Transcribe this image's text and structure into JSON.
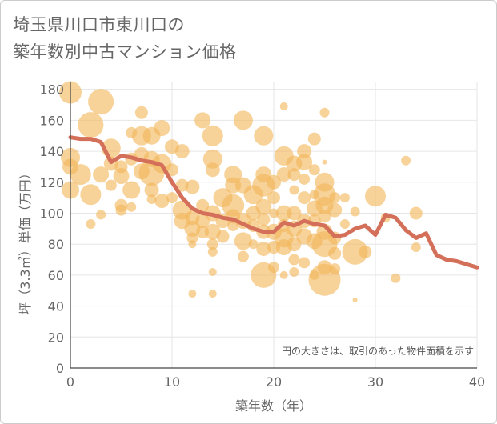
{
  "title_lines": [
    "埼玉県川口市東川口の",
    "築年数別中古マンション価格"
  ],
  "colors": {
    "bubble": "#f2b65a",
    "line": "#d4705a",
    "grid": "#e6e6e6",
    "axis": "#444444",
    "text": "#666666"
  },
  "chart_data": {
    "type": "scatter",
    "title": "埼玉県川口市東川口の築年数別中古マンション価格",
    "xlabel": "築年数（年）",
    "ylabel": "坪（3.3㎡）単価（万円）",
    "xlim": [
      0,
      40
    ],
    "ylim": [
      0,
      185
    ],
    "xticks": [
      0,
      10,
      20,
      30,
      40
    ],
    "yticks": [
      0,
      20,
      40,
      60,
      80,
      100,
      120,
      140,
      160,
      180
    ],
    "note": "円の大きさは、取引のあった物件面積を示す",
    "bubbles": [
      {
        "x": 0,
        "y": 178,
        "s": 14
      },
      {
        "x": 0,
        "y": 136,
        "s": 12
      },
      {
        "x": 0,
        "y": 130,
        "s": 10
      },
      {
        "x": 0,
        "y": 115,
        "s": 11
      },
      {
        "x": 1,
        "y": 125,
        "s": 13
      },
      {
        "x": 2,
        "y": 157,
        "s": 16
      },
      {
        "x": 2,
        "y": 112,
        "s": 13
      },
      {
        "x": 2,
        "y": 93,
        "s": 6
      },
      {
        "x": 3,
        "y": 172,
        "s": 16
      },
      {
        "x": 3,
        "y": 125,
        "s": 10
      },
      {
        "x": 3,
        "y": 99,
        "s": 6
      },
      {
        "x": 4,
        "y": 142,
        "s": 12
      },
      {
        "x": 4,
        "y": 132,
        "s": 9
      },
      {
        "x": 4,
        "y": 118,
        "s": 7
      },
      {
        "x": 5,
        "y": 130,
        "s": 8
      },
      {
        "x": 5,
        "y": 124,
        "s": 10
      },
      {
        "x": 5,
        "y": 105,
        "s": 8
      },
      {
        "x": 5,
        "y": 102,
        "s": 7
      },
      {
        "x": 6,
        "y": 152,
        "s": 7
      },
      {
        "x": 6,
        "y": 135,
        "s": 8
      },
      {
        "x": 6,
        "y": 115,
        "s": 11
      },
      {
        "x": 6,
        "y": 104,
        "s": 6
      },
      {
        "x": 7,
        "y": 165,
        "s": 8
      },
      {
        "x": 7,
        "y": 150,
        "s": 12
      },
      {
        "x": 7,
        "y": 138,
        "s": 9
      },
      {
        "x": 7,
        "y": 127,
        "s": 10
      },
      {
        "x": 8,
        "y": 150,
        "s": 11
      },
      {
        "x": 8,
        "y": 135,
        "s": 10
      },
      {
        "x": 8,
        "y": 126,
        "s": 16
      },
      {
        "x": 8,
        "y": 115,
        "s": 9
      },
      {
        "x": 8,
        "y": 109,
        "s": 6
      },
      {
        "x": 9,
        "y": 155,
        "s": 10
      },
      {
        "x": 9,
        "y": 132,
        "s": 12
      },
      {
        "x": 9,
        "y": 108,
        "s": 9
      },
      {
        "x": 10,
        "y": 143,
        "s": 9
      },
      {
        "x": 10,
        "y": 128,
        "s": 8
      },
      {
        "x": 10,
        "y": 110,
        "s": 7
      },
      {
        "x": 11,
        "y": 140,
        "s": 9
      },
      {
        "x": 11,
        "y": 118,
        "s": 8
      },
      {
        "x": 11,
        "y": 102,
        "s": 12
      },
      {
        "x": 11,
        "y": 95,
        "s": 10
      },
      {
        "x": 12,
        "y": 117,
        "s": 9
      },
      {
        "x": 12,
        "y": 97,
        "s": 9
      },
      {
        "x": 12,
        "y": 90,
        "s": 10
      },
      {
        "x": 12,
        "y": 84,
        "s": 7
      },
      {
        "x": 12,
        "y": 80,
        "s": 5
      },
      {
        "x": 12,
        "y": 48,
        "s": 5
      },
      {
        "x": 13,
        "y": 160,
        "s": 10
      },
      {
        "x": 13,
        "y": 105,
        "s": 8
      },
      {
        "x": 13,
        "y": 95,
        "s": 9
      },
      {
        "x": 13,
        "y": 88,
        "s": 8
      },
      {
        "x": 14,
        "y": 150,
        "s": 13
      },
      {
        "x": 14,
        "y": 135,
        "s": 12
      },
      {
        "x": 14,
        "y": 128,
        "s": 9
      },
      {
        "x": 14,
        "y": 100,
        "s": 10
      },
      {
        "x": 14,
        "y": 88,
        "s": 10
      },
      {
        "x": 14,
        "y": 80,
        "s": 7
      },
      {
        "x": 14,
        "y": 75,
        "s": 6
      },
      {
        "x": 14,
        "y": 62,
        "s": 5
      },
      {
        "x": 14,
        "y": 48,
        "s": 5
      },
      {
        "x": 15,
        "y": 110,
        "s": 12
      },
      {
        "x": 15,
        "y": 95,
        "s": 9
      },
      {
        "x": 15,
        "y": 85,
        "s": 8
      },
      {
        "x": 16,
        "y": 125,
        "s": 11
      },
      {
        "x": 16,
        "y": 118,
        "s": 10
      },
      {
        "x": 16,
        "y": 105,
        "s": 14
      },
      {
        "x": 16,
        "y": 98,
        "s": 9
      },
      {
        "x": 16,
        "y": 92,
        "s": 7
      },
      {
        "x": 17,
        "y": 160,
        "s": 12
      },
      {
        "x": 17,
        "y": 118,
        "s": 10
      },
      {
        "x": 17,
        "y": 95,
        "s": 10
      },
      {
        "x": 17,
        "y": 82,
        "s": 11
      },
      {
        "x": 17,
        "y": 72,
        "s": 7
      },
      {
        "x": 18,
        "y": 112,
        "s": 12
      },
      {
        "x": 18,
        "y": 100,
        "s": 9
      },
      {
        "x": 18,
        "y": 92,
        "s": 8
      },
      {
        "x": 18,
        "y": 80,
        "s": 6
      },
      {
        "x": 19,
        "y": 150,
        "s": 12
      },
      {
        "x": 19,
        "y": 125,
        "s": 10
      },
      {
        "x": 19,
        "y": 118,
        "s": 14
      },
      {
        "x": 19,
        "y": 104,
        "s": 10
      },
      {
        "x": 19,
        "y": 96,
        "s": 8
      },
      {
        "x": 19,
        "y": 88,
        "s": 9
      },
      {
        "x": 19,
        "y": 77,
        "s": 9
      },
      {
        "x": 19,
        "y": 60,
        "s": 16
      },
      {
        "x": 20,
        "y": 120,
        "s": 9
      },
      {
        "x": 20,
        "y": 110,
        "s": 8
      },
      {
        "x": 20,
        "y": 100,
        "s": 6
      },
      {
        "x": 20,
        "y": 88,
        "s": 10
      },
      {
        "x": 20,
        "y": 78,
        "s": 8
      },
      {
        "x": 20,
        "y": 65,
        "s": 7
      },
      {
        "x": 21,
        "y": 169,
        "s": 5
      },
      {
        "x": 21,
        "y": 137,
        "s": 12
      },
      {
        "x": 21,
        "y": 125,
        "s": 9
      },
      {
        "x": 21,
        "y": 100,
        "s": 10
      },
      {
        "x": 21,
        "y": 92,
        "s": 8
      },
      {
        "x": 21,
        "y": 84,
        "s": 12
      },
      {
        "x": 21,
        "y": 78,
        "s": 10
      },
      {
        "x": 21,
        "y": 60,
        "s": 5
      },
      {
        "x": 22,
        "y": 132,
        "s": 10
      },
      {
        "x": 22,
        "y": 125,
        "s": 8
      },
      {
        "x": 22,
        "y": 115,
        "s": 6
      },
      {
        "x": 22,
        "y": 100,
        "s": 9
      },
      {
        "x": 22,
        "y": 90,
        "s": 10
      },
      {
        "x": 22,
        "y": 80,
        "s": 9
      },
      {
        "x": 22,
        "y": 70,
        "s": 7
      },
      {
        "x": 22,
        "y": 62,
        "s": 6
      },
      {
        "x": 23,
        "y": 140,
        "s": 9
      },
      {
        "x": 23,
        "y": 133,
        "s": 10
      },
      {
        "x": 23,
        "y": 122,
        "s": 7
      },
      {
        "x": 23,
        "y": 110,
        "s": 8
      },
      {
        "x": 23,
        "y": 95,
        "s": 9
      },
      {
        "x": 23,
        "y": 85,
        "s": 10
      },
      {
        "x": 23,
        "y": 68,
        "s": 7
      },
      {
        "x": 24,
        "y": 148,
        "s": 8
      },
      {
        "x": 24,
        "y": 128,
        "s": 7
      },
      {
        "x": 24,
        "y": 112,
        "s": 6
      },
      {
        "x": 24,
        "y": 103,
        "s": 10
      },
      {
        "x": 24,
        "y": 95,
        "s": 8
      },
      {
        "x": 24,
        "y": 82,
        "s": 10
      },
      {
        "x": 24,
        "y": 60,
        "s": 6
      },
      {
        "x": 25,
        "y": 165,
        "s": 6
      },
      {
        "x": 25,
        "y": 133,
        "s": 3
      },
      {
        "x": 25,
        "y": 120,
        "s": 12
      },
      {
        "x": 25,
        "y": 112,
        "s": 14
      },
      {
        "x": 25,
        "y": 105,
        "s": 11
      },
      {
        "x": 25,
        "y": 98,
        "s": 8
      },
      {
        "x": 25,
        "y": 88,
        "s": 10
      },
      {
        "x": 25,
        "y": 80,
        "s": 16
      },
      {
        "x": 25,
        "y": 65,
        "s": 9
      },
      {
        "x": 25,
        "y": 57,
        "s": 20
      },
      {
        "x": 26,
        "y": 110,
        "s": 7
      },
      {
        "x": 26,
        "y": 102,
        "s": 9
      },
      {
        "x": 26,
        "y": 84,
        "s": 8
      },
      {
        "x": 26,
        "y": 74,
        "s": 8
      },
      {
        "x": 26,
        "y": 64,
        "s": 7
      },
      {
        "x": 27,
        "y": 110,
        "s": 6
      },
      {
        "x": 27,
        "y": 93,
        "s": 6
      },
      {
        "x": 28,
        "y": 101,
        "s": 6
      },
      {
        "x": 28,
        "y": 75,
        "s": 16
      },
      {
        "x": 28,
        "y": 44,
        "s": 3
      },
      {
        "x": 29,
        "y": 75,
        "s": 8
      },
      {
        "x": 30,
        "y": 111,
        "s": 13
      },
      {
        "x": 31,
        "y": 97,
        "s": 6
      },
      {
        "x": 32,
        "y": 58,
        "s": 6
      },
      {
        "x": 33,
        "y": 134,
        "s": 6
      },
      {
        "x": 34,
        "y": 100,
        "s": 8
      },
      {
        "x": 34,
        "y": 78,
        "s": 6
      }
    ],
    "series": [
      {
        "x": [
          0,
          1,
          2,
          3,
          4,
          5,
          6,
          7,
          8,
          9,
          10,
          11,
          12,
          13,
          14,
          15,
          16,
          17,
          18,
          19,
          20,
          21,
          22,
          23,
          24,
          25,
          26,
          27,
          28,
          29,
          30,
          31,
          32,
          33,
          34,
          35,
          36,
          37,
          38,
          39,
          40
        ],
        "values": [
          149,
          148,
          148,
          146,
          133,
          137,
          136,
          134,
          133,
          131,
          120,
          110,
          103,
          100,
          99,
          97,
          96,
          93,
          90,
          88,
          88,
          94,
          92,
          95,
          93,
          92,
          85,
          86,
          90,
          92,
          86,
          99,
          97,
          89,
          84,
          87,
          73,
          70,
          69,
          67,
          65
        ]
      }
    ]
  }
}
